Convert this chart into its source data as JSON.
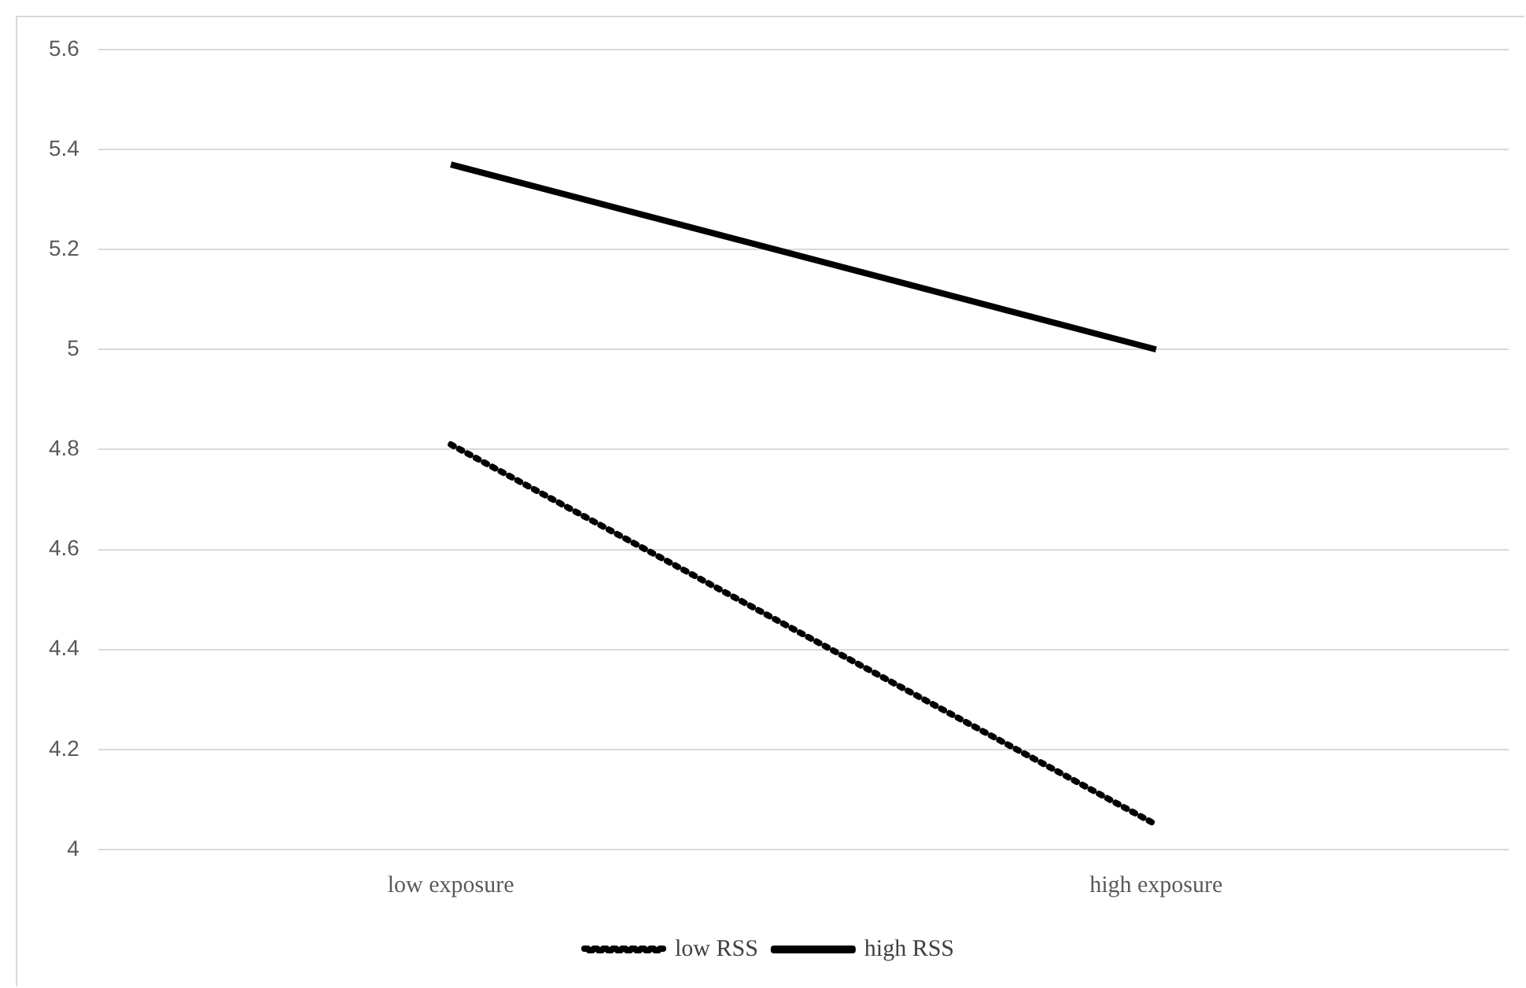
{
  "chart_data": {
    "type": "line",
    "categories": [
      "low exposure",
      "high exposure"
    ],
    "series": [
      {
        "name": "low RSS",
        "color": "#000000",
        "values": [
          4.81,
          4.05
        ],
        "line_style": "dotted"
      },
      {
        "name": "high RSS",
        "color": "#000000",
        "values": [
          5.37,
          5.0
        ],
        "line_style": "solid"
      }
    ],
    "ylim": [
      4,
      5.6
    ],
    "yticks": [
      4,
      4.2,
      4.4,
      4.6,
      4.8,
      5,
      5.2,
      5.4,
      5.6
    ],
    "grid": "y",
    "legend": "bottom",
    "marker": "none"
  }
}
